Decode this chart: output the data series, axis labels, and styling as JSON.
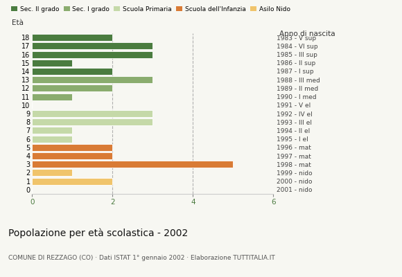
{
  "ages": [
    18,
    17,
    16,
    15,
    14,
    13,
    12,
    11,
    10,
    9,
    8,
    7,
    6,
    5,
    4,
    3,
    2,
    1,
    0
  ],
  "values": [
    2,
    3,
    3,
    1,
    2,
    3,
    2,
    1,
    0,
    3,
    3,
    1,
    1,
    2,
    2,
    5,
    1,
    2,
    0
  ],
  "colors": [
    "#4a7c3f",
    "#4a7c3f",
    "#4a7c3f",
    "#4a7c3f",
    "#4a7c3f",
    "#8aac6e",
    "#8aac6e",
    "#8aac6e",
    "#8aac6e",
    "#c5d9a8",
    "#c5d9a8",
    "#c5d9a8",
    "#c5d9a8",
    "#d97b35",
    "#d97b35",
    "#d97b35",
    "#f0c46b",
    "#f0c46b",
    "#f0c46b"
  ],
  "right_labels": [
    "1983 - V sup",
    "1984 - VI sup",
    "1985 - III sup",
    "1986 - II sup",
    "1987 - I sup",
    "1988 - III med",
    "1989 - II med",
    "1990 - I med",
    "1991 - V el",
    "1992 - IV el",
    "1993 - III el",
    "1994 - II el",
    "1995 - I el",
    "1996 - mat",
    "1997 - mat",
    "1998 - mat",
    "1999 - nido",
    "2000 - nido",
    "2001 - nido"
  ],
  "legend_labels": [
    "Sec. II grado",
    "Sec. I grado",
    "Scuola Primaria",
    "Scuola dell'Infanzia",
    "Asilo Nido"
  ],
  "legend_colors": [
    "#4a7c3f",
    "#8aac6e",
    "#c5d9a8",
    "#d97b35",
    "#f0c46b"
  ],
  "title": "Popolazione per età scolastica - 2002",
  "subtitle": "COMUNE DI REZZAGO (CO) · Dati ISTAT 1° gennaio 2002 · Elaborazione TUTTITALIA.IT",
  "ylabel_left": "Età",
  "ylabel_right": "Anno di nascita",
  "xlim": [
    0,
    6
  ],
  "xticks": [
    0,
    2,
    4,
    6
  ],
  "background_color": "#f7f7f2"
}
